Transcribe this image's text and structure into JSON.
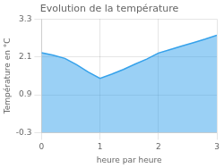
{
  "chart_data": {
    "type": "area",
    "title": "Evolution de la température",
    "x_label": "heure par heure",
    "y_label": "Température en °C",
    "x": [
      0,
      0.2,
      0.4,
      0.6,
      0.8,
      1.0,
      1.2,
      1.4,
      1.6,
      1.8,
      2.0,
      2.2,
      2.4,
      2.6,
      2.8,
      3.0
    ],
    "values": [
      2.23,
      2.15,
      2.05,
      1.85,
      1.62,
      1.42,
      1.55,
      1.7,
      1.87,
      2.03,
      2.22,
      2.33,
      2.44,
      2.55,
      2.66,
      2.78
    ],
    "xlim": [
      0,
      3
    ],
    "xticks": [
      0,
      1,
      2,
      3
    ],
    "ylim": [
      -0.3,
      3.3
    ],
    "yticks": [
      -0.3,
      0.9,
      2.1,
      3.3
    ],
    "grid": true
  }
}
